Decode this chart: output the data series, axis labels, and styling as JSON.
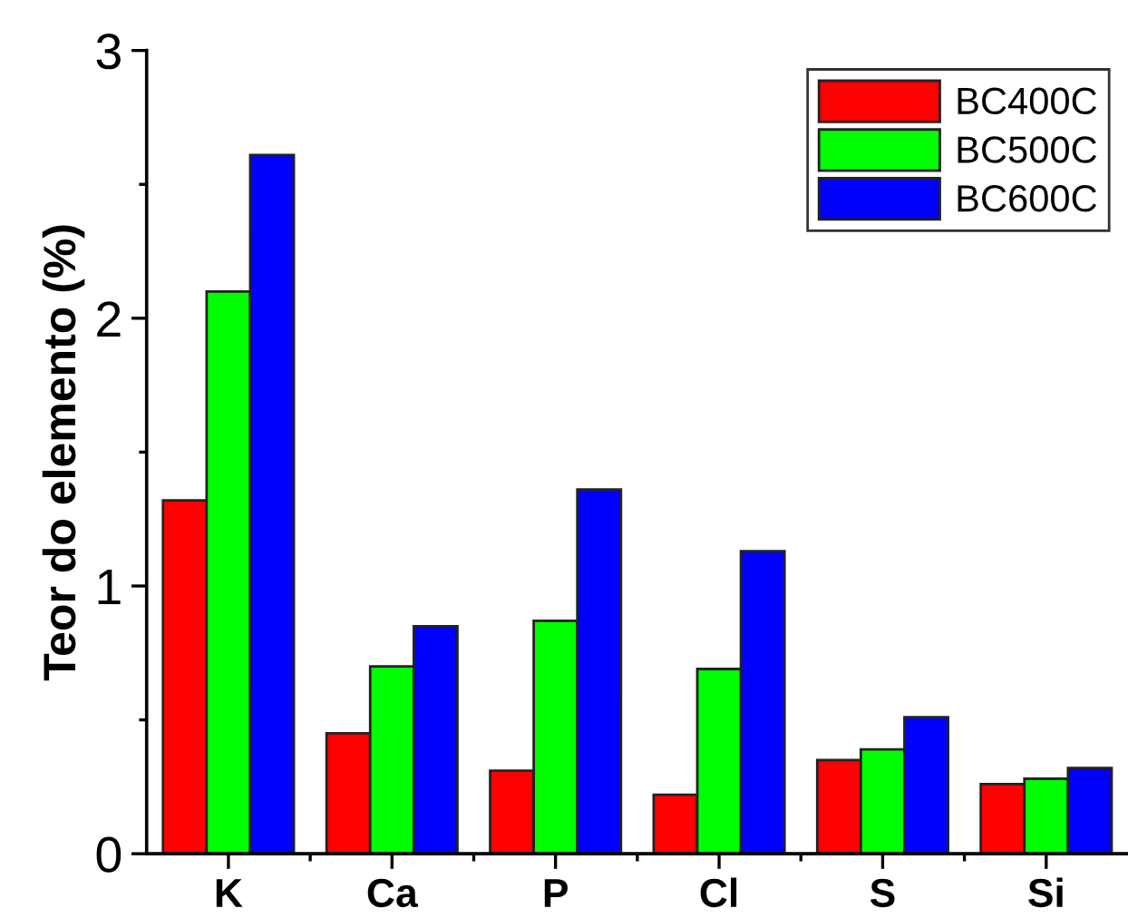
{
  "chart_data": {
    "type": "bar",
    "ylabel": "Teor do elemento (%)",
    "categories": [
      "K",
      "Ca",
      "P",
      "Cl",
      "S",
      "Si"
    ],
    "series": [
      {
        "name": "BC400C",
        "color": "#ff0000",
        "values": [
          1.32,
          0.45,
          0.31,
          0.22,
          0.35,
          0.26
        ]
      },
      {
        "name": "BC500C",
        "color": "#00ff00",
        "values": [
          2.1,
          0.7,
          0.87,
          0.69,
          0.39,
          0.28
        ]
      },
      {
        "name": "BC600C",
        "color": "#0000ff",
        "values": [
          2.61,
          0.85,
          1.36,
          1.13,
          0.51,
          0.32
        ]
      }
    ],
    "ylim": [
      0,
      3
    ],
    "yticks": [
      0,
      1,
      2,
      3
    ],
    "grid": false,
    "legend": "top right"
  }
}
